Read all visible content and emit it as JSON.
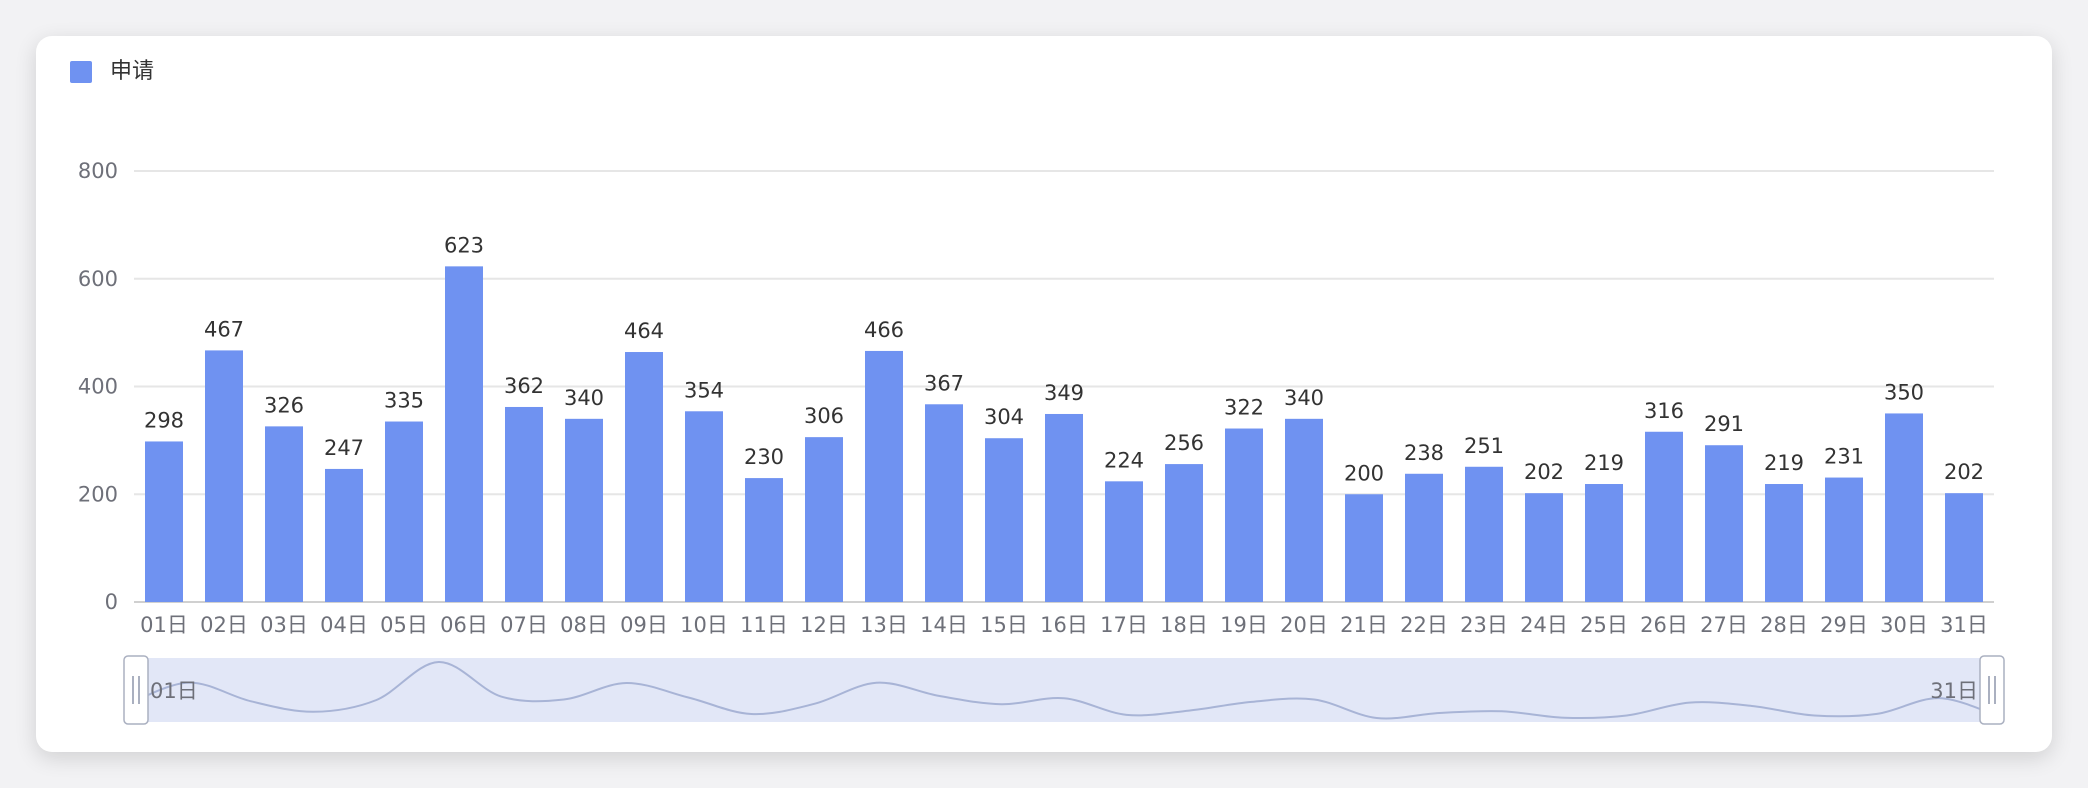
{
  "legend": {
    "label": "申请",
    "color": "#6f92f1"
  },
  "zoom": {
    "start_label": "01日",
    "end_label": "31日"
  },
  "chart_data": {
    "type": "bar",
    "categories": [
      "01日",
      "02日",
      "03日",
      "04日",
      "05日",
      "06日",
      "07日",
      "08日",
      "09日",
      "10日",
      "11日",
      "12日",
      "13日",
      "14日",
      "15日",
      "16日",
      "17日",
      "18日",
      "19日",
      "20日",
      "21日",
      "22日",
      "23日",
      "24日",
      "25日",
      "26日",
      "27日",
      "28日",
      "29日",
      "30日",
      "31日"
    ],
    "series": [
      {
        "name": "申请",
        "values": [
          298,
          467,
          326,
          247,
          335,
          623,
          362,
          340,
          464,
          354,
          230,
          306,
          466,
          367,
          304,
          349,
          224,
          256,
          322,
          340,
          200,
          238,
          251,
          202,
          219,
          316,
          291,
          219,
          231,
          350,
          202
        ]
      }
    ],
    "y_ticks": [
      "0",
      "200",
      "400",
      "600",
      "800"
    ],
    "ylim": [
      0,
      800
    ],
    "grid": true,
    "legend_position": "top-left",
    "data_labels": true,
    "bar_color": "#6f92f1",
    "grid_color": "#e6e6e6",
    "zoom_fill_color": "#e2e7f7"
  }
}
